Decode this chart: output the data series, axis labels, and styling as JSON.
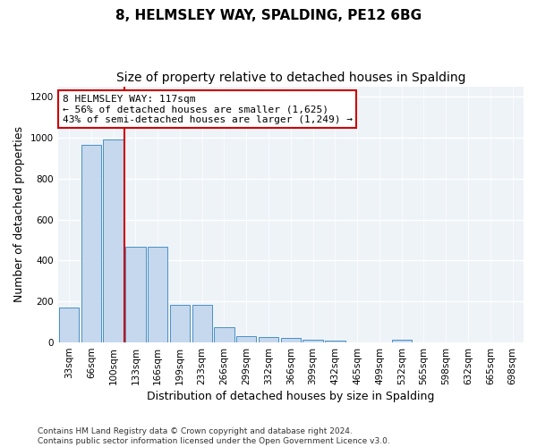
{
  "title": "8, HELMSLEY WAY, SPALDING, PE12 6BG",
  "subtitle": "Size of property relative to detached houses in Spalding",
  "xlabel": "Distribution of detached houses by size in Spalding",
  "ylabel": "Number of detached properties",
  "categories": [
    "33sqm",
    "66sqm",
    "100sqm",
    "133sqm",
    "166sqm",
    "199sqm",
    "233sqm",
    "266sqm",
    "299sqm",
    "332sqm",
    "366sqm",
    "399sqm",
    "432sqm",
    "465sqm",
    "499sqm",
    "532sqm",
    "565sqm",
    "598sqm",
    "632sqm",
    "665sqm",
    "698sqm"
  ],
  "values": [
    170,
    965,
    990,
    465,
    465,
    185,
    185,
    75,
    30,
    25,
    20,
    15,
    10,
    0,
    0,
    15,
    0,
    0,
    0,
    0,
    0
  ],
  "bar_color": "#c5d8ed",
  "bar_edge_color": "#4a90c4",
  "red_line_x": 2.5,
  "annotation_text": "8 HELMSLEY WAY: 117sqm\n← 56% of detached houses are smaller (1,625)\n43% of semi-detached houses are larger (1,249) →",
  "annotation_box_color": "#ffffff",
  "annotation_box_edge": "#cc0000",
  "ylim": [
    0,
    1250
  ],
  "yticks": [
    0,
    200,
    400,
    600,
    800,
    1000,
    1200
  ],
  "background_color": "#eef3f8",
  "grid_color": "#ffffff",
  "footer": "Contains HM Land Registry data © Crown copyright and database right 2024.\nContains public sector information licensed under the Open Government Licence v3.0.",
  "title_fontsize": 11,
  "subtitle_fontsize": 10,
  "xlabel_fontsize": 9,
  "ylabel_fontsize": 9,
  "tick_fontsize": 7.5,
  "annotation_fontsize": 8,
  "footer_fontsize": 6.5
}
